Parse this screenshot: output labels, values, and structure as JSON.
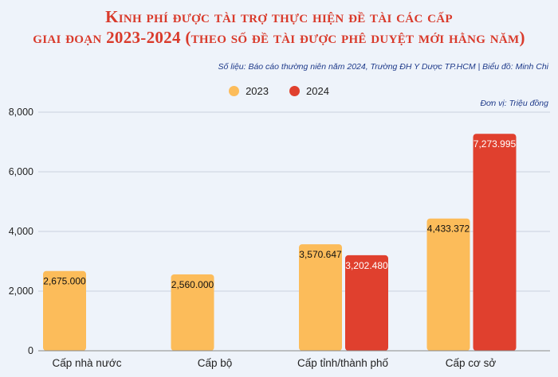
{
  "header": {
    "title_line1": "Kinh phí được tài trợ thực hiện đề tài các cấp",
    "title_line2": "giai đoạn 2023-2024 (theo số đề tài được phê duyệt mới hằng năm)",
    "source": "Số liệu: Báo cáo thường niên năm 2024, Trường ĐH Y Dược TP.HCM | Biểu đồ: Minh Chi",
    "unit": "Đơn vị: Triệu đồng"
  },
  "colors": {
    "series_2023": "#fcbc5a",
    "series_2024": "#e0402e",
    "title": "#d93a2b",
    "background": "#eef3fa"
  },
  "chart_data": {
    "type": "bar",
    "categories": [
      "Cấp nhà nước",
      "Cấp bộ",
      "Cấp tỉnh/thành phố",
      "Cấp cơ sở"
    ],
    "series": [
      {
        "name": "2023",
        "values": [
          2675.0,
          2560.0,
          3570.647,
          4433.372
        ],
        "labels": [
          "2,675.000",
          "2,560.000",
          "3,570.647",
          "4,433.372"
        ]
      },
      {
        "name": "2024",
        "values": [
          null,
          null,
          3202.48,
          7273.995
        ],
        "labels": [
          "",
          "",
          "3,202.480",
          "7,273.995"
        ]
      }
    ],
    "ylim": [
      0,
      8000
    ],
    "yticks": [
      0,
      2000,
      4000,
      6000,
      8000
    ],
    "ytick_labels": [
      "0",
      "2,000",
      "4,000",
      "6,000",
      "8,000"
    ],
    "grid": true,
    "legend_position": "top-center"
  }
}
